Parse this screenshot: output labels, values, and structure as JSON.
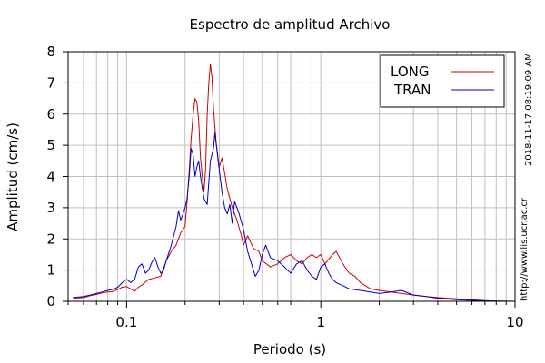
{
  "chart_data": {
    "type": "line",
    "title": "Espectro de amplitud Archivo",
    "xlabel": "Periodo (s)",
    "ylabel": "Amplitud (cm/s)",
    "x_scale": "log",
    "xlim": [
      0.05,
      10
    ],
    "ylim": [
      0,
      8
    ],
    "grid": true,
    "legend_position": "top-right",
    "x_tick_labels": [
      "0.1",
      "1",
      "10"
    ],
    "x_tick_values": [
      0.1,
      1,
      10
    ],
    "y_tick_labels": [
      "0",
      "1",
      "2",
      "3",
      "4",
      "5",
      "6",
      "7",
      "8"
    ],
    "y_tick_values": [
      0,
      1,
      2,
      3,
      4,
      5,
      6,
      7,
      8
    ],
    "series": [
      {
        "name": "LONG",
        "color": "#cc0000",
        "points": [
          [
            0.053,
            0.1
          ],
          [
            0.06,
            0.12
          ],
          [
            0.065,
            0.18
          ],
          [
            0.07,
            0.22
          ],
          [
            0.075,
            0.27
          ],
          [
            0.08,
            0.3
          ],
          [
            0.085,
            0.31
          ],
          [
            0.09,
            0.38
          ],
          [
            0.095,
            0.45
          ],
          [
            0.1,
            0.47
          ],
          [
            0.105,
            0.4
          ],
          [
            0.11,
            0.32
          ],
          [
            0.115,
            0.45
          ],
          [
            0.12,
            0.52
          ],
          [
            0.13,
            0.7
          ],
          [
            0.14,
            0.75
          ],
          [
            0.15,
            0.8
          ],
          [
            0.16,
            1.3
          ],
          [
            0.17,
            1.6
          ],
          [
            0.18,
            1.8
          ],
          [
            0.19,
            2.2
          ],
          [
            0.2,
            2.4
          ],
          [
            0.205,
            3.2
          ],
          [
            0.21,
            4.2
          ],
          [
            0.215,
            5.2
          ],
          [
            0.22,
            6.0
          ],
          [
            0.225,
            6.5
          ],
          [
            0.23,
            6.4
          ],
          [
            0.235,
            5.8
          ],
          [
            0.24,
            4.6
          ],
          [
            0.25,
            3.5
          ],
          [
            0.255,
            4.2
          ],
          [
            0.26,
            6.0
          ],
          [
            0.265,
            7.0
          ],
          [
            0.27,
            7.6
          ],
          [
            0.275,
            7.2
          ],
          [
            0.28,
            6.2
          ],
          [
            0.29,
            5.0
          ],
          [
            0.3,
            4.3
          ],
          [
            0.31,
            4.6
          ],
          [
            0.32,
            4.1
          ],
          [
            0.33,
            3.6
          ],
          [
            0.34,
            3.3
          ],
          [
            0.35,
            3.0
          ],
          [
            0.37,
            2.6
          ],
          [
            0.39,
            2.1
          ],
          [
            0.4,
            1.8
          ],
          [
            0.42,
            2.1
          ],
          [
            0.45,
            1.7
          ],
          [
            0.48,
            1.6
          ],
          [
            0.5,
            1.3
          ],
          [
            0.55,
            1.1
          ],
          [
            0.6,
            1.2
          ],
          [
            0.65,
            1.4
          ],
          [
            0.7,
            1.5
          ],
          [
            0.75,
            1.3
          ],
          [
            0.8,
            1.2
          ],
          [
            0.85,
            1.4
          ],
          [
            0.9,
            1.5
          ],
          [
            0.95,
            1.4
          ],
          [
            1.0,
            1.5
          ],
          [
            1.05,
            1.2
          ],
          [
            1.1,
            1.35
          ],
          [
            1.15,
            1.5
          ],
          [
            1.2,
            1.6
          ],
          [
            1.3,
            1.2
          ],
          [
            1.4,
            0.9
          ],
          [
            1.5,
            0.8
          ],
          [
            1.6,
            0.6
          ],
          [
            1.8,
            0.4
          ],
          [
            2.0,
            0.35
          ],
          [
            2.3,
            0.3
          ],
          [
            2.6,
            0.25
          ],
          [
            3.0,
            0.2
          ],
          [
            3.5,
            0.15
          ],
          [
            4.0,
            0.12
          ],
          [
            5.0,
            0.08
          ],
          [
            6.0,
            0.05
          ],
          [
            7.0,
            0.02
          ],
          [
            8.0,
            0.01
          ],
          [
            10.0,
            0.0
          ]
        ]
      },
      {
        "name": "TRAN",
        "color": "#0000cc",
        "points": [
          [
            0.053,
            0.12
          ],
          [
            0.06,
            0.15
          ],
          [
            0.065,
            0.2
          ],
          [
            0.07,
            0.25
          ],
          [
            0.075,
            0.3
          ],
          [
            0.08,
            0.35
          ],
          [
            0.085,
            0.38
          ],
          [
            0.09,
            0.45
          ],
          [
            0.095,
            0.6
          ],
          [
            0.1,
            0.7
          ],
          [
            0.105,
            0.6
          ],
          [
            0.11,
            0.7
          ],
          [
            0.115,
            1.1
          ],
          [
            0.12,
            1.2
          ],
          [
            0.125,
            0.9
          ],
          [
            0.13,
            1.0
          ],
          [
            0.135,
            1.25
          ],
          [
            0.14,
            1.4
          ],
          [
            0.145,
            1.1
          ],
          [
            0.15,
            0.9
          ],
          [
            0.155,
            1.0
          ],
          [
            0.16,
            1.3
          ],
          [
            0.17,
            1.8
          ],
          [
            0.18,
            2.4
          ],
          [
            0.185,
            2.9
          ],
          [
            0.19,
            2.6
          ],
          [
            0.195,
            2.8
          ],
          [
            0.2,
            3.0
          ],
          [
            0.205,
            3.3
          ],
          [
            0.21,
            4.0
          ],
          [
            0.215,
            4.9
          ],
          [
            0.22,
            4.7
          ],
          [
            0.225,
            4.0
          ],
          [
            0.23,
            4.3
          ],
          [
            0.235,
            4.5
          ],
          [
            0.24,
            4.0
          ],
          [
            0.25,
            3.3
          ],
          [
            0.26,
            3.1
          ],
          [
            0.27,
            4.5
          ],
          [
            0.28,
            4.9
          ],
          [
            0.285,
            5.4
          ],
          [
            0.29,
            5.0
          ],
          [
            0.3,
            4.2
          ],
          [
            0.31,
            3.5
          ],
          [
            0.32,
            3.0
          ],
          [
            0.33,
            2.8
          ],
          [
            0.34,
            3.1
          ],
          [
            0.35,
            2.5
          ],
          [
            0.36,
            3.2
          ],
          [
            0.38,
            2.8
          ],
          [
            0.4,
            2.3
          ],
          [
            0.42,
            1.6
          ],
          [
            0.44,
            1.2
          ],
          [
            0.46,
            0.8
          ],
          [
            0.48,
            1.0
          ],
          [
            0.5,
            1.5
          ],
          [
            0.52,
            1.8
          ],
          [
            0.55,
            1.4
          ],
          [
            0.6,
            1.3
          ],
          [
            0.65,
            1.1
          ],
          [
            0.7,
            0.9
          ],
          [
            0.75,
            1.2
          ],
          [
            0.8,
            1.3
          ],
          [
            0.85,
            1.0
          ],
          [
            0.9,
            0.8
          ],
          [
            0.95,
            0.7
          ],
          [
            1.0,
            1.1
          ],
          [
            1.05,
            1.2
          ],
          [
            1.1,
            0.9
          ],
          [
            1.15,
            0.7
          ],
          [
            1.2,
            0.6
          ],
          [
            1.3,
            0.5
          ],
          [
            1.4,
            0.4
          ],
          [
            1.6,
            0.35
          ],
          [
            1.8,
            0.3
          ],
          [
            2.0,
            0.25
          ],
          [
            2.3,
            0.3
          ],
          [
            2.6,
            0.35
          ],
          [
            3.0,
            0.2
          ],
          [
            3.5,
            0.15
          ],
          [
            4.0,
            0.1
          ],
          [
            5.0,
            0.05
          ],
          [
            6.0,
            0.03
          ],
          [
            8.0,
            0.01
          ],
          [
            10.0,
            0.0
          ]
        ]
      }
    ]
  },
  "side_texts": {
    "timestamp": "2018-11-17 08:19:09 AM",
    "url": "http://www.lis.ucr.ac.cr"
  }
}
